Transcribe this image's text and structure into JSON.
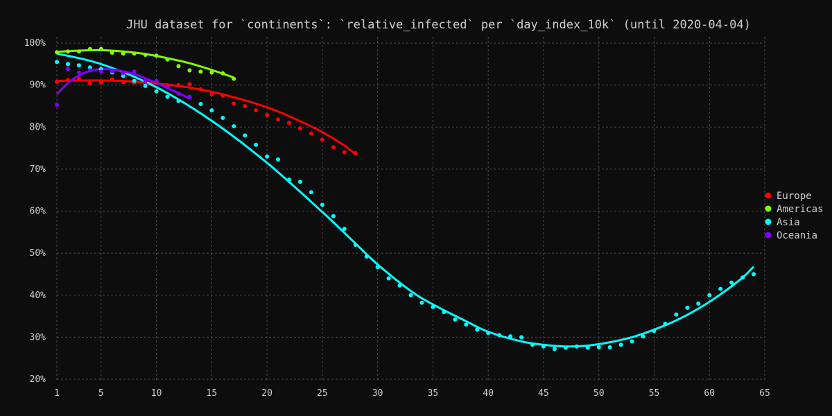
{
  "chart_data": {
    "type": "scatter",
    "title": "JHU dataset for `continents`: `relative_infected` per `day_index_10k` (until 2020-04-04)",
    "xlabel": "",
    "ylabel": "",
    "xlim": [
      1,
      65
    ],
    "ylim": [
      19.5,
      101.5
    ],
    "x_ticks": [
      1,
      5,
      10,
      15,
      20,
      25,
      30,
      35,
      40,
      45,
      50,
      55,
      60,
      65
    ],
    "y_ticks": [
      20,
      30,
      40,
      50,
      60,
      70,
      80,
      90,
      100
    ],
    "y_tick_suffix": "%",
    "grid": true,
    "legend_position": "right",
    "background": "#0d0d0d",
    "series": [
      {
        "name": "Europe",
        "color": "#ff0000",
        "points": [
          [
            1,
            90.8
          ],
          [
            2,
            91.2
          ],
          [
            3,
            91.5
          ],
          [
            4,
            90.4
          ],
          [
            5,
            90.6
          ],
          [
            6,
            91.4
          ],
          [
            7,
            90.7
          ],
          [
            8,
            90.6
          ],
          [
            9,
            90.3
          ],
          [
            10,
            90.6
          ],
          [
            11,
            90.0
          ],
          [
            12,
            90.0
          ],
          [
            13,
            90.2
          ],
          [
            14,
            89.0
          ],
          [
            15,
            87.8
          ],
          [
            16,
            87.5
          ],
          [
            17,
            85.6
          ],
          [
            18,
            85.0
          ],
          [
            19,
            84.0
          ],
          [
            20,
            82.9
          ],
          [
            21,
            81.8
          ],
          [
            22,
            81.0
          ],
          [
            23,
            79.7
          ],
          [
            24,
            78.5
          ],
          [
            25,
            77.0
          ],
          [
            26,
            75.2
          ],
          [
            27,
            74.0
          ],
          [
            28,
            73.8
          ]
        ],
        "fit": [
          [
            1,
            91.0
          ],
          [
            3,
            91.1
          ],
          [
            5,
            91.1
          ],
          [
            7,
            91.0
          ],
          [
            9,
            90.6
          ],
          [
            11,
            90.1
          ],
          [
            13,
            89.4
          ],
          [
            15,
            88.4
          ],
          [
            17,
            87.1
          ],
          [
            19,
            85.6
          ],
          [
            21,
            83.7
          ],
          [
            23,
            81.4
          ],
          [
            25,
            78.8
          ],
          [
            27,
            75.6
          ],
          [
            28,
            73.5
          ]
        ]
      },
      {
        "name": "Americas",
        "color": "#7fff00",
        "points": [
          [
            1,
            97.8
          ],
          [
            2,
            98.0
          ],
          [
            3,
            98.0
          ],
          [
            4,
            98.6
          ],
          [
            5,
            98.6
          ],
          [
            6,
            97.7
          ],
          [
            7,
            97.5
          ],
          [
            8,
            97.5
          ],
          [
            9,
            97.2
          ],
          [
            10,
            97.0
          ],
          [
            11,
            96.1
          ],
          [
            12,
            94.5
          ],
          [
            13,
            93.5
          ],
          [
            14,
            93.2
          ],
          [
            15,
            93.0
          ],
          [
            16,
            92.8
          ],
          [
            17,
            91.5
          ]
        ],
        "fit": [
          [
            1,
            97.9
          ],
          [
            3,
            98.2
          ],
          [
            5,
            98.3
          ],
          [
            7,
            98.0
          ],
          [
            9,
            97.4
          ],
          [
            11,
            96.4
          ],
          [
            13,
            95.2
          ],
          [
            15,
            93.6
          ],
          [
            17,
            91.8
          ]
        ]
      },
      {
        "name": "Asia",
        "color": "#00ffff",
        "points": [
          [
            1,
            95.5
          ],
          [
            2,
            95.0
          ],
          [
            3,
            94.7
          ],
          [
            4,
            94.2
          ],
          [
            5,
            93.8
          ],
          [
            6,
            93.0
          ],
          [
            7,
            92.2
          ],
          [
            8,
            91.0
          ],
          [
            9,
            89.8
          ],
          [
            10,
            88.5
          ],
          [
            11,
            87.2
          ],
          [
            12,
            86.2
          ],
          [
            13,
            87.2
          ],
          [
            14,
            85.5
          ],
          [
            15,
            84.0
          ],
          [
            16,
            82.2
          ],
          [
            17,
            80.2
          ],
          [
            18,
            78.0
          ],
          [
            19,
            75.8
          ],
          [
            20,
            73.0
          ],
          [
            21,
            72.3
          ],
          [
            22,
            67.5
          ],
          [
            23,
            67.0
          ],
          [
            24,
            64.5
          ],
          [
            25,
            61.5
          ],
          [
            26,
            58.8
          ],
          [
            27,
            55.8
          ],
          [
            28,
            52.0
          ],
          [
            29,
            49.2
          ],
          [
            30,
            46.7
          ],
          [
            31,
            44.0
          ],
          [
            32,
            42.3
          ],
          [
            33,
            40.0
          ],
          [
            34,
            38.2
          ],
          [
            35,
            37.2
          ],
          [
            36,
            36.0
          ],
          [
            37,
            34.2
          ],
          [
            38,
            33.0
          ],
          [
            39,
            31.8
          ],
          [
            40,
            31.0
          ],
          [
            41,
            30.5
          ],
          [
            42,
            30.2
          ],
          [
            43,
            30.0
          ],
          [
            44,
            28.2
          ],
          [
            45,
            27.8
          ],
          [
            46,
            27.2
          ],
          [
            47,
            27.5
          ],
          [
            48,
            27.8
          ],
          [
            49,
            27.5
          ],
          [
            50,
            27.6
          ],
          [
            51,
            27.6
          ],
          [
            52,
            28.2
          ],
          [
            53,
            29.0
          ],
          [
            54,
            30.2
          ],
          [
            55,
            31.5
          ],
          [
            56,
            33.2
          ],
          [
            57,
            35.4
          ],
          [
            58,
            37.0
          ],
          [
            59,
            38.0
          ],
          [
            60,
            40.0
          ],
          [
            61,
            41.5
          ],
          [
            62,
            43.0
          ],
          [
            63,
            44.2
          ],
          [
            64,
            45.0
          ]
        ],
        "fit": [
          [
            1,
            97.5
          ],
          [
            5,
            95.0
          ],
          [
            10,
            89.5
          ],
          [
            15,
            81.5
          ],
          [
            20,
            71.5
          ],
          [
            25,
            59.8
          ],
          [
            28,
            52.3
          ],
          [
            30,
            47.3
          ],
          [
            33,
            41.0
          ],
          [
            35,
            37.8
          ],
          [
            38,
            33.8
          ],
          [
            40,
            31.3
          ],
          [
            43,
            29.0
          ],
          [
            45,
            28.2
          ],
          [
            47,
            27.8
          ],
          [
            49,
            28.0
          ],
          [
            51,
            28.8
          ],
          [
            53,
            30.0
          ],
          [
            55,
            31.8
          ],
          [
            57,
            34.0
          ],
          [
            59,
            36.8
          ],
          [
            61,
            40.2
          ],
          [
            63,
            44.2
          ],
          [
            64,
            46.8
          ]
        ]
      },
      {
        "name": "Oceania",
        "color": "#7f00ff",
        "points": [
          [
            1,
            85.3
          ],
          [
            2,
            93.8
          ],
          [
            3,
            93.0
          ],
          [
            4,
            93.5
          ],
          [
            5,
            93.2
          ],
          [
            6,
            93.3
          ],
          [
            7,
            92.9
          ],
          [
            8,
            93.2
          ],
          [
            9,
            91.0
          ],
          [
            10,
            91.0
          ],
          [
            11,
            89.5
          ],
          [
            12,
            88.0
          ],
          [
            13,
            87.2
          ]
        ],
        "fit": [
          [
            1,
            87.8
          ],
          [
            2,
            90.5
          ],
          [
            3,
            92.3
          ],
          [
            4,
            93.4
          ],
          [
            5,
            93.8
          ],
          [
            6,
            93.7
          ],
          [
            7,
            93.3
          ],
          [
            8,
            92.6
          ],
          [
            9,
            91.6
          ],
          [
            10,
            90.5
          ],
          [
            11,
            89.3
          ],
          [
            12,
            88.1
          ],
          [
            13,
            86.8
          ]
        ]
      }
    ]
  }
}
